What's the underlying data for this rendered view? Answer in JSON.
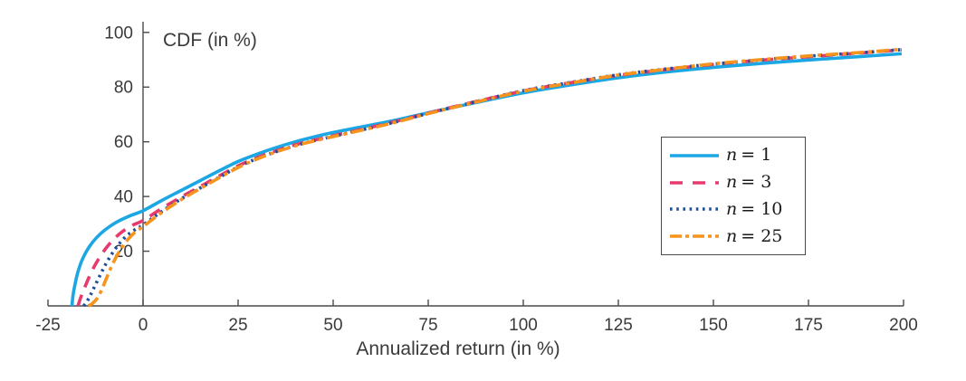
{
  "figure": {
    "title": "CDF (in %)",
    "x_axis_label": "Annualized return (in %)"
  },
  "legend": {
    "items": [
      {
        "var": "n",
        "rest": "= 1"
      },
      {
        "var": "n",
        "rest": "= 3"
      },
      {
        "var": "n",
        "rest": "= 10"
      },
      {
        "var": "n",
        "rest": "= 25"
      }
    ]
  },
  "style": {
    "axis_color": "#4a4a4a",
    "text_color": "#3a3a3a",
    "line_width": 3.6,
    "dash_patterns": {
      "solid": "",
      "dashed": "13 9",
      "dotted": "2.6 4.6",
      "dashdot": "14 5 4 5"
    },
    "legend_dash_patterns": {
      "solid": "",
      "dashed": "14 11",
      "dotted": "2.6 4.6",
      "dashdot": "13 4 4 4"
    }
  },
  "chart_data": {
    "type": "line",
    "title": "CDF (in %)",
    "xlabel": "Annualized return (in %)",
    "ylabel": "CDF (in %)",
    "xlim": [
      -25,
      200
    ],
    "ylim": [
      0,
      105
    ],
    "x_ticks": [
      -25,
      0,
      25,
      50,
      75,
      100,
      125,
      150,
      175,
      200
    ],
    "y_ticks": [
      20,
      40,
      60,
      80,
      100
    ],
    "grid": false,
    "legend_position": "right-center",
    "series": [
      {
        "id": "n-1",
        "name": "n = 1",
        "color": "#1BA7E3",
        "line_style": "solid",
        "points": [
          [
            -18.7,
            0
          ],
          [
            -18.4,
            4
          ],
          [
            -17.8,
            8.5
          ],
          [
            -17,
            13
          ],
          [
            -15.8,
            17.5
          ],
          [
            -14.2,
            21.5
          ],
          [
            -12.2,
            25
          ],
          [
            -9.8,
            28
          ],
          [
            -7,
            30.6
          ],
          [
            -3.5,
            32.9
          ],
          [
            0,
            34.8
          ],
          [
            5,
            38.6
          ],
          [
            10,
            42.2
          ],
          [
            15,
            45.8
          ],
          [
            20,
            49.4
          ],
          [
            25,
            52.8
          ],
          [
            30,
            55.5
          ],
          [
            35,
            57.9
          ],
          [
            40,
            60
          ],
          [
            45,
            61.8
          ],
          [
            50,
            63.4
          ],
          [
            58,
            65.6
          ],
          [
            66,
            67.8
          ],
          [
            75,
            70.6
          ],
          [
            85,
            73.6
          ],
          [
            100,
            77.9
          ],
          [
            112,
            80.7
          ],
          [
            125,
            83.4
          ],
          [
            138,
            85.6
          ],
          [
            150,
            87.2
          ],
          [
            163,
            88.7
          ],
          [
            175,
            89.9
          ],
          [
            188,
            91.1
          ],
          [
            199.5,
            92.2
          ]
        ]
      },
      {
        "id": "n-3",
        "name": "n = 3",
        "color": "#E73B6E",
        "line_style": "dashed",
        "points": [
          [
            -17.1,
            0
          ],
          [
            -16.4,
            3
          ],
          [
            -15.4,
            6.5
          ],
          [
            -14.2,
            10.5
          ],
          [
            -12.8,
            14.5
          ],
          [
            -11.2,
            18.2
          ],
          [
            -9.4,
            21.7
          ],
          [
            -7.4,
            24.8
          ],
          [
            -5.2,
            27.4
          ],
          [
            -2.6,
            29.6
          ],
          [
            0,
            31.2
          ],
          [
            5,
            35.7
          ],
          [
            10,
            39.8
          ],
          [
            15,
            43.6
          ],
          [
            20,
            47.5
          ],
          [
            25,
            51.2
          ],
          [
            30,
            54.2
          ],
          [
            35,
            56.7
          ],
          [
            40,
            58.9
          ],
          [
            45,
            60.6
          ],
          [
            50,
            62.2
          ],
          [
            58,
            64.7
          ],
          [
            66,
            67.3
          ],
          [
            75,
            70.5
          ],
          [
            85,
            73.9
          ],
          [
            100,
            78.6
          ],
          [
            112,
            81.5
          ],
          [
            125,
            84.3
          ],
          [
            138,
            86.5
          ],
          [
            150,
            88.3
          ],
          [
            163,
            89.9
          ],
          [
            175,
            91.1
          ],
          [
            188,
            92.4
          ],
          [
            199.5,
            93.6
          ]
        ]
      },
      {
        "id": "n-10",
        "name": "n = 10",
        "color": "#1F4E9C",
        "line_style": "dotted",
        "points": [
          [
            -15.6,
            0
          ],
          [
            -14.8,
            1.5
          ],
          [
            -13.8,
            4
          ],
          [
            -12.6,
            7.5
          ],
          [
            -11.2,
            11.5
          ],
          [
            -9.8,
            15.3
          ],
          [
            -8.2,
            19
          ],
          [
            -6.4,
            22.5
          ],
          [
            -4.4,
            25.5
          ],
          [
            -2.2,
            27.8
          ],
          [
            0,
            29.6
          ],
          [
            5,
            34.6
          ],
          [
            10,
            39.1
          ],
          [
            15,
            43.1
          ],
          [
            20,
            47
          ],
          [
            25,
            50.8
          ],
          [
            30,
            53.9
          ],
          [
            35,
            56.4
          ],
          [
            40,
            58.6
          ],
          [
            45,
            60.4
          ],
          [
            50,
            62
          ],
          [
            58,
            64.5
          ],
          [
            66,
            67.1
          ],
          [
            75,
            70.4
          ],
          [
            85,
            73.8
          ],
          [
            100,
            78.7
          ],
          [
            112,
            81.6
          ],
          [
            125,
            84.5
          ],
          [
            138,
            86.7
          ],
          [
            150,
            88.4
          ],
          [
            163,
            90
          ],
          [
            175,
            91.3
          ],
          [
            188,
            92.5
          ],
          [
            199.5,
            93.7
          ]
        ]
      },
      {
        "id": "n-25",
        "name": "n = 25",
        "color": "#F7941D",
        "line_style": "dashdot",
        "points": [
          [
            -14.4,
            0
          ],
          [
            -13.4,
            0.8
          ],
          [
            -12.2,
            2.5
          ],
          [
            -11,
            5.5
          ],
          [
            -9.8,
            9.5
          ],
          [
            -8.6,
            13.5
          ],
          [
            -7.2,
            17.5
          ],
          [
            -5.6,
            21.3
          ],
          [
            -3.8,
            24.6
          ],
          [
            -1.9,
            27.2
          ],
          [
            0,
            29
          ],
          [
            5,
            34.2
          ],
          [
            10,
            38.8
          ],
          [
            15,
            42.9
          ],
          [
            20,
            46.8
          ],
          [
            25,
            50.6
          ],
          [
            30,
            53.7
          ],
          [
            35,
            56.3
          ],
          [
            40,
            58.5
          ],
          [
            45,
            60.3
          ],
          [
            50,
            61.9
          ],
          [
            58,
            64.4
          ],
          [
            66,
            67
          ],
          [
            75,
            70.3
          ],
          [
            85,
            73.7
          ],
          [
            100,
            78.5
          ],
          [
            112,
            81.4
          ],
          [
            125,
            84.4
          ],
          [
            138,
            86.6
          ],
          [
            150,
            88.5
          ],
          [
            163,
            90.1
          ],
          [
            175,
            91.4
          ],
          [
            188,
            92.6
          ],
          [
            199.5,
            93.8
          ]
        ]
      }
    ]
  }
}
